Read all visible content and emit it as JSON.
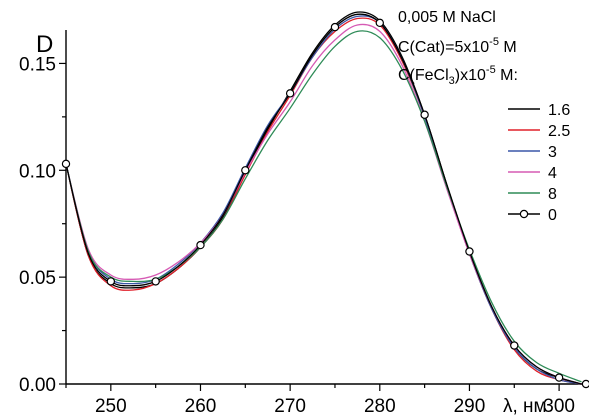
{
  "chart_data": {
    "type": "line",
    "ylabel": "D",
    "xlabel": "λ, нм",
    "xlim": [
      245,
      303
    ],
    "ylim": [
      0,
      0.175
    ],
    "xticks": [
      250,
      260,
      270,
      280,
      290,
      300
    ],
    "yticks": [
      0.0,
      0.05,
      0.1,
      0.15
    ],
    "ytick_labels": [
      "0.00",
      "0.05",
      "0.10",
      "0.15"
    ],
    "legend_position": "top-right",
    "annotations": {
      "line1": "0,005 M NaCl",
      "line2_pre": "C(Cat)=5x10",
      "line2_sup": "-5",
      "line2_post": " M",
      "line3_pre": "C(FeCl",
      "line3_sub": "3",
      "line3_mid": ")x10",
      "line3_sup": "-5",
      "line3_post": " M:"
    },
    "x": [
      245,
      247.5,
      250,
      252.5,
      255,
      257.5,
      260,
      262.5,
      265,
      267.5,
      270,
      272.5,
      275,
      277.5,
      280,
      282.5,
      285,
      287.5,
      290,
      292.5,
      295,
      297.5,
      300,
      302.5
    ],
    "series": [
      {
        "name": "1.6",
        "color": "#000000",
        "marker": false,
        "values": [
          0.103,
          0.06,
          0.047,
          0.045,
          0.047,
          0.054,
          0.064,
          0.078,
          0.099,
          0.119,
          0.137,
          0.155,
          0.168,
          0.174,
          0.17,
          0.153,
          0.126,
          0.093,
          0.062,
          0.036,
          0.017,
          0.007,
          0.003,
          0.0
        ]
      },
      {
        "name": "2.5",
        "color": "#e0202a",
        "marker": false,
        "values": [
          0.103,
          0.06,
          0.046,
          0.044,
          0.047,
          0.054,
          0.064,
          0.077,
          0.098,
          0.118,
          0.135,
          0.153,
          0.165,
          0.171,
          0.168,
          0.151,
          0.125,
          0.092,
          0.061,
          0.035,
          0.016,
          0.006,
          0.002,
          0.0
        ]
      },
      {
        "name": "3",
        "color": "#3a57a8",
        "marker": false,
        "values": [
          0.103,
          0.062,
          0.049,
          0.047,
          0.049,
          0.056,
          0.066,
          0.08,
          0.101,
          0.121,
          0.136,
          0.153,
          0.166,
          0.172,
          0.169,
          0.152,
          0.125,
          0.092,
          0.061,
          0.035,
          0.017,
          0.007,
          0.002,
          0.0
        ]
      },
      {
        "name": "4",
        "color": "#d65ab4",
        "marker": false,
        "values": [
          0.103,
          0.063,
          0.051,
          0.049,
          0.051,
          0.057,
          0.066,
          0.079,
          0.099,
          0.117,
          0.132,
          0.149,
          0.161,
          0.168,
          0.165,
          0.149,
          0.123,
          0.091,
          0.061,
          0.036,
          0.018,
          0.008,
          0.003,
          0.0
        ]
      },
      {
        "name": "8",
        "color": "#2e8b57",
        "marker": false,
        "values": [
          0.103,
          0.062,
          0.05,
          0.048,
          0.049,
          0.055,
          0.064,
          0.077,
          0.096,
          0.114,
          0.129,
          0.145,
          0.158,
          0.165,
          0.162,
          0.147,
          0.123,
          0.092,
          0.063,
          0.038,
          0.02,
          0.01,
          0.005,
          0.001
        ]
      },
      {
        "name": "0",
        "color": "#000000",
        "marker": true,
        "values": [
          0.103,
          0.061,
          0.048,
          0.046,
          0.048,
          0.055,
          0.065,
          0.079,
          0.1,
          0.12,
          0.136,
          0.154,
          0.167,
          0.173,
          0.169,
          0.152,
          0.126,
          0.093,
          0.062,
          0.036,
          0.018,
          0.008,
          0.003,
          0.0
        ],
        "marker_x": [
          245,
          250,
          255,
          260,
          265,
          270,
          275,
          280,
          285,
          290,
          295,
          300,
          303
        ]
      }
    ]
  }
}
